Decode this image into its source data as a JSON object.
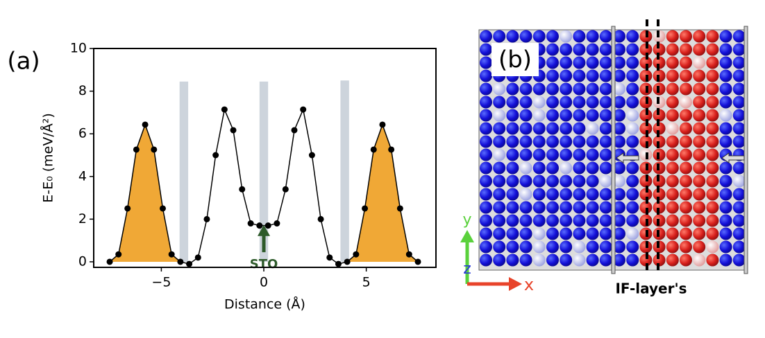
{
  "chart_data": {
    "type": "line",
    "panel_label": "(a)",
    "xlabel": "Distance (Å)",
    "ylabel": "E-E₀ (meV/Å²)",
    "x": [
      -7.52,
      -7.09,
      -6.65,
      -6.22,
      -5.79,
      -5.36,
      -4.93,
      -4.5,
      -4.07,
      -3.64,
      -3.21,
      -2.78,
      -2.35,
      -1.92,
      -1.49,
      -1.06,
      -0.64,
      -0.21,
      0.21,
      0.64,
      1.06,
      1.49,
      1.92,
      2.35,
      2.78,
      3.21,
      3.64,
      4.07,
      4.5,
      4.93,
      5.36,
      5.79,
      6.22,
      6.65,
      7.09,
      7.52
    ],
    "values": [
      0,
      0.35,
      2.5,
      5.26,
      6.43,
      5.26,
      2.5,
      0.35,
      0,
      -0.1,
      0.2,
      2.0,
      5.0,
      7.14,
      6.17,
      3.4,
      1.8,
      1.7,
      1.7,
      1.8,
      3.4,
      6.17,
      7.14,
      5.0,
      2.0,
      0.2,
      -0.1,
      0,
      0.35,
      2.5,
      5.26,
      6.43,
      5.26,
      2.5,
      0.35,
      0
    ],
    "color": "#000000",
    "shaded_regions": [
      {
        "x": [
          -7.52,
          -4.07
        ],
        "color": "#f0a836"
      },
      {
        "x": [
          4.07,
          7.52
        ],
        "color": "#f0a836"
      }
    ],
    "bars": {
      "x": [
        -3.9,
        0,
        3.95
      ],
      "heights": [
        8.45,
        8.45,
        8.5
      ],
      "width": 0.42,
      "color": "#cdd4dc"
    },
    "annotation": {
      "text": "STO",
      "x": 0,
      "y_from": 0.45,
      "y_to": 1.6,
      "color": "#2d5a2a"
    },
    "xlim": [
      -8.3,
      8.4
    ],
    "ylim": [
      -0.26,
      10
    ],
    "xticks": [
      {
        "value": -5,
        "label": "−5"
      },
      0,
      5
    ],
    "yticks": [
      0,
      2,
      4,
      6,
      8,
      10
    ]
  },
  "panel_b": {
    "label": "(b)",
    "annotation": "IF-layer's",
    "axis_x": "x",
    "axis_y": "y",
    "axis_z": "z"
  }
}
